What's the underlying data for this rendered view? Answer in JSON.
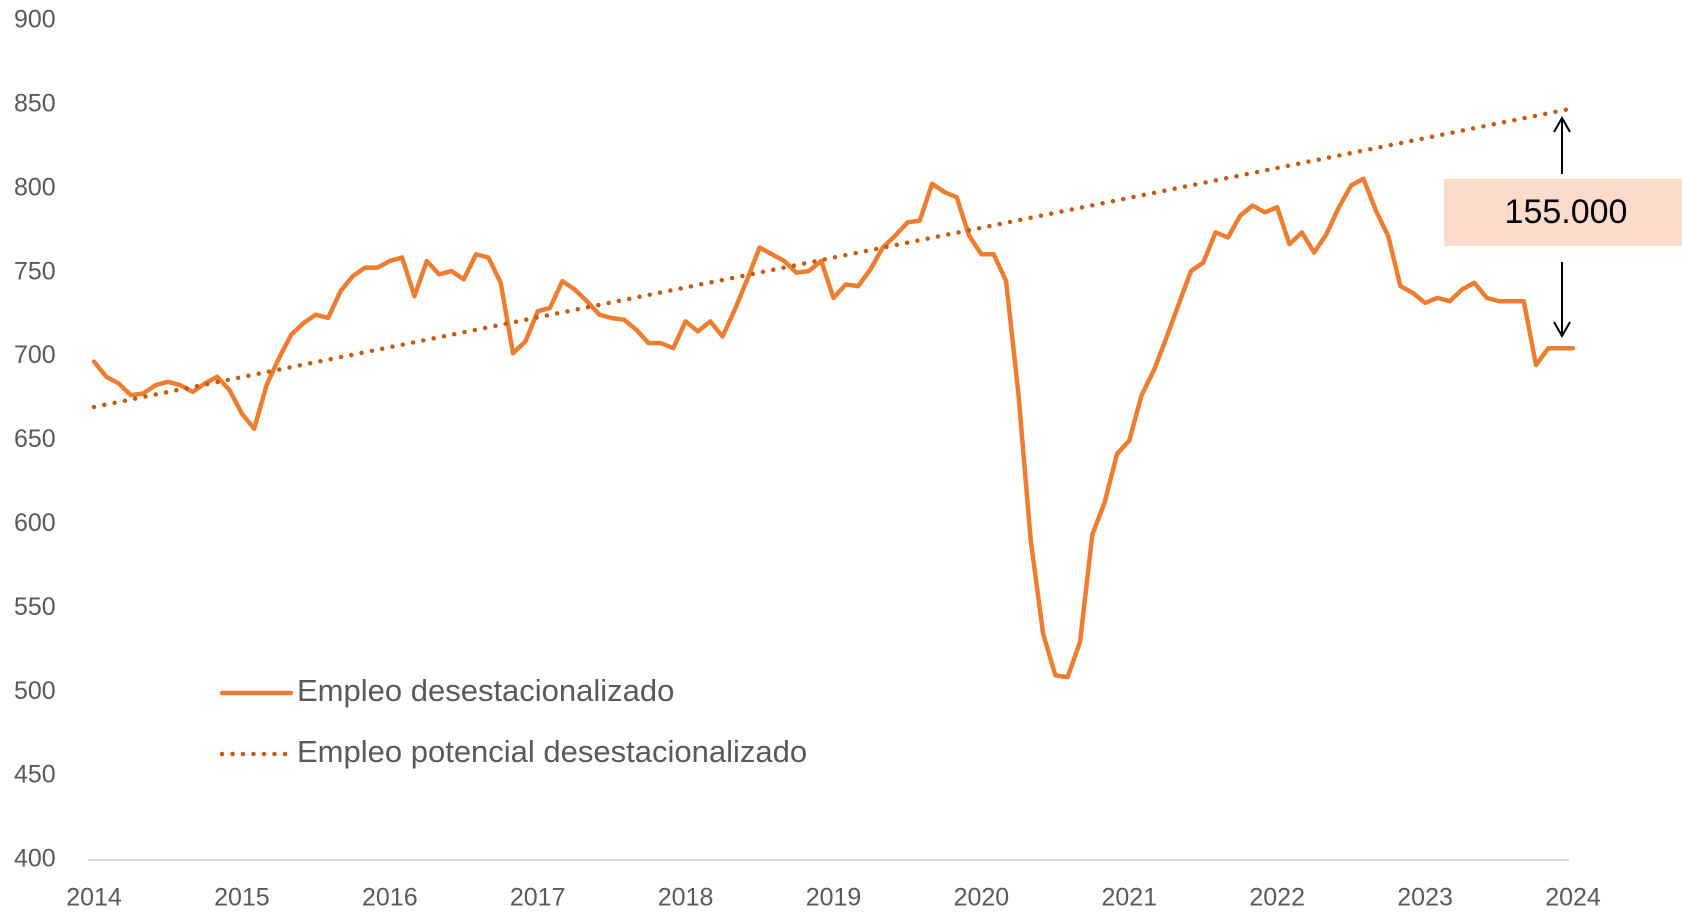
{
  "chart_data": {
    "type": "line",
    "annotation": "155.000",
    "xlim": [
      2014,
      2024
    ],
    "xticks": [
      2014,
      2015,
      2016,
      2017,
      2018,
      2019,
      2020,
      2021,
      2022,
      2023,
      2024
    ],
    "ylim": [
      400,
      900
    ],
    "yticks": [
      400,
      450,
      500,
      550,
      600,
      650,
      700,
      750,
      800,
      850,
      900
    ],
    "x": [
      2014,
      2014.083,
      2014.167,
      2014.25,
      2014.333,
      2014.417,
      2014.5,
      2014.583,
      2014.667,
      2014.75,
      2014.833,
      2014.917,
      2015,
      2015.083,
      2015.167,
      2015.25,
      2015.333,
      2015.417,
      2015.5,
      2015.583,
      2015.667,
      2015.75,
      2015.833,
      2015.917,
      2016,
      2016.083,
      2016.167,
      2016.25,
      2016.333,
      2016.417,
      2016.5,
      2016.583,
      2016.667,
      2016.75,
      2016.833,
      2016.917,
      2017,
      2017.083,
      2017.167,
      2017.25,
      2017.333,
      2017.417,
      2017.5,
      2017.583,
      2017.667,
      2017.75,
      2017.833,
      2017.917,
      2018,
      2018.083,
      2018.167,
      2018.25,
      2018.333,
      2018.417,
      2018.5,
      2018.583,
      2018.667,
      2018.75,
      2018.833,
      2018.917,
      2019,
      2019.083,
      2019.167,
      2019.25,
      2019.333,
      2019.417,
      2019.5,
      2019.583,
      2019.667,
      2019.75,
      2019.833,
      2019.917,
      2020,
      2020.083,
      2020.167,
      2020.25,
      2020.333,
      2020.417,
      2020.5,
      2020.583,
      2020.667,
      2020.75,
      2020.833,
      2020.917,
      2021,
      2021.083,
      2021.167,
      2021.25,
      2021.333,
      2021.417,
      2021.5,
      2021.583,
      2021.667,
      2021.75,
      2021.833,
      2021.917,
      2022,
      2022.083,
      2022.167,
      2022.25,
      2022.333,
      2022.417,
      2022.5,
      2022.583,
      2022.667,
      2022.75,
      2022.833,
      2022.917,
      2023,
      2023.083,
      2023.167,
      2023.25,
      2023.333,
      2023.417,
      2023.5,
      2023.583,
      2023.667,
      2023.75,
      2023.833,
      2023.917,
      2024
    ],
    "series": [
      {
        "name": "Empleo desestacionalizado",
        "color": "#ed7d31",
        "style": "solid",
        "values": [
          697,
          688,
          684,
          677,
          678,
          683,
          685,
          683,
          679,
          684,
          688,
          680,
          666,
          657,
          683,
          699,
          713,
          720,
          725,
          723,
          739,
          748,
          753,
          753,
          757,
          759,
          736,
          757,
          749,
          751,
          746,
          761,
          759,
          744,
          702,
          709,
          727,
          729,
          745,
          740,
          733,
          725,
          723,
          722,
          716,
          708,
          708,
          705,
          721,
          715,
          721,
          712,
          728,
          746,
          765,
          761,
          757,
          750,
          751,
          757,
          735,
          743,
          742,
          752,
          765,
          772,
          780,
          781,
          803,
          798,
          795,
          772,
          761,
          761,
          745,
          678,
          591,
          535,
          510,
          509,
          530,
          594,
          613,
          642,
          650,
          677,
          692,
          711,
          731,
          751,
          756,
          774,
          771,
          784,
          790,
          786,
          789,
          767,
          774,
          762,
          773,
          789,
          802,
          806,
          787,
          772,
          742,
          738,
          732,
          735,
          733,
          740,
          744,
          735,
          733,
          733,
          733,
          695,
          705,
          705,
          705
        ]
      },
      {
        "name": "Empleo potencial desestacionalizado",
        "color": "#c55a11",
        "style": "dotted",
        "x": [
          2014,
          2024
        ],
        "values": [
          670,
          848
        ]
      }
    ]
  }
}
